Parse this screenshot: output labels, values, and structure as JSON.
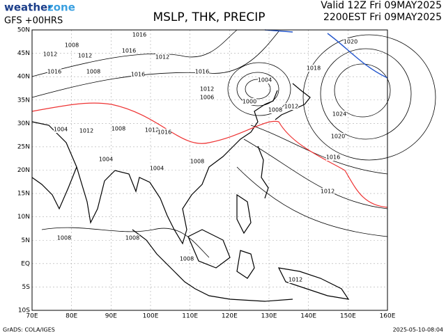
{
  "header": {
    "logo_a": "weather",
    "logo_b": "zone",
    "model": "GFS +00HRS",
    "title": "MSLP, THK, PRECIP",
    "valid": "Valid 12Z Fri 09MAY2025",
    "local": "2200EST Fri 09MAY2025"
  },
  "map": {
    "lat_labels": [
      "50N",
      "45N",
      "40N",
      "35N",
      "30N",
      "25N",
      "20N",
      "15N",
      "10N",
      "5N",
      "EQ",
      "5S",
      "10S"
    ],
    "lon_labels": [
      "70E",
      "80E",
      "90E",
      "100E",
      "110E",
      "120E",
      "130E",
      "140E",
      "150E",
      "160E"
    ],
    "isobar_labels": [
      "1016",
      "1008",
      "1012",
      "1012",
      "1016",
      "1012",
      "1016",
      "1008",
      "1016",
      "1016",
      "1012",
      "1004",
      "1000",
      "1008",
      "1012",
      "1006",
      "1024",
      "1020",
      "1016",
      "1012",
      "1020",
      "1018",
      "1004",
      "1012",
      "1008",
      "1012",
      "1016",
      "1004",
      "1004",
      "1008",
      "1008",
      "1008",
      "1008",
      "1012"
    ]
  },
  "footer": {
    "credit": "GrADS: COLA/IGES",
    "stamp": "2025-05-10-08:04"
  }
}
